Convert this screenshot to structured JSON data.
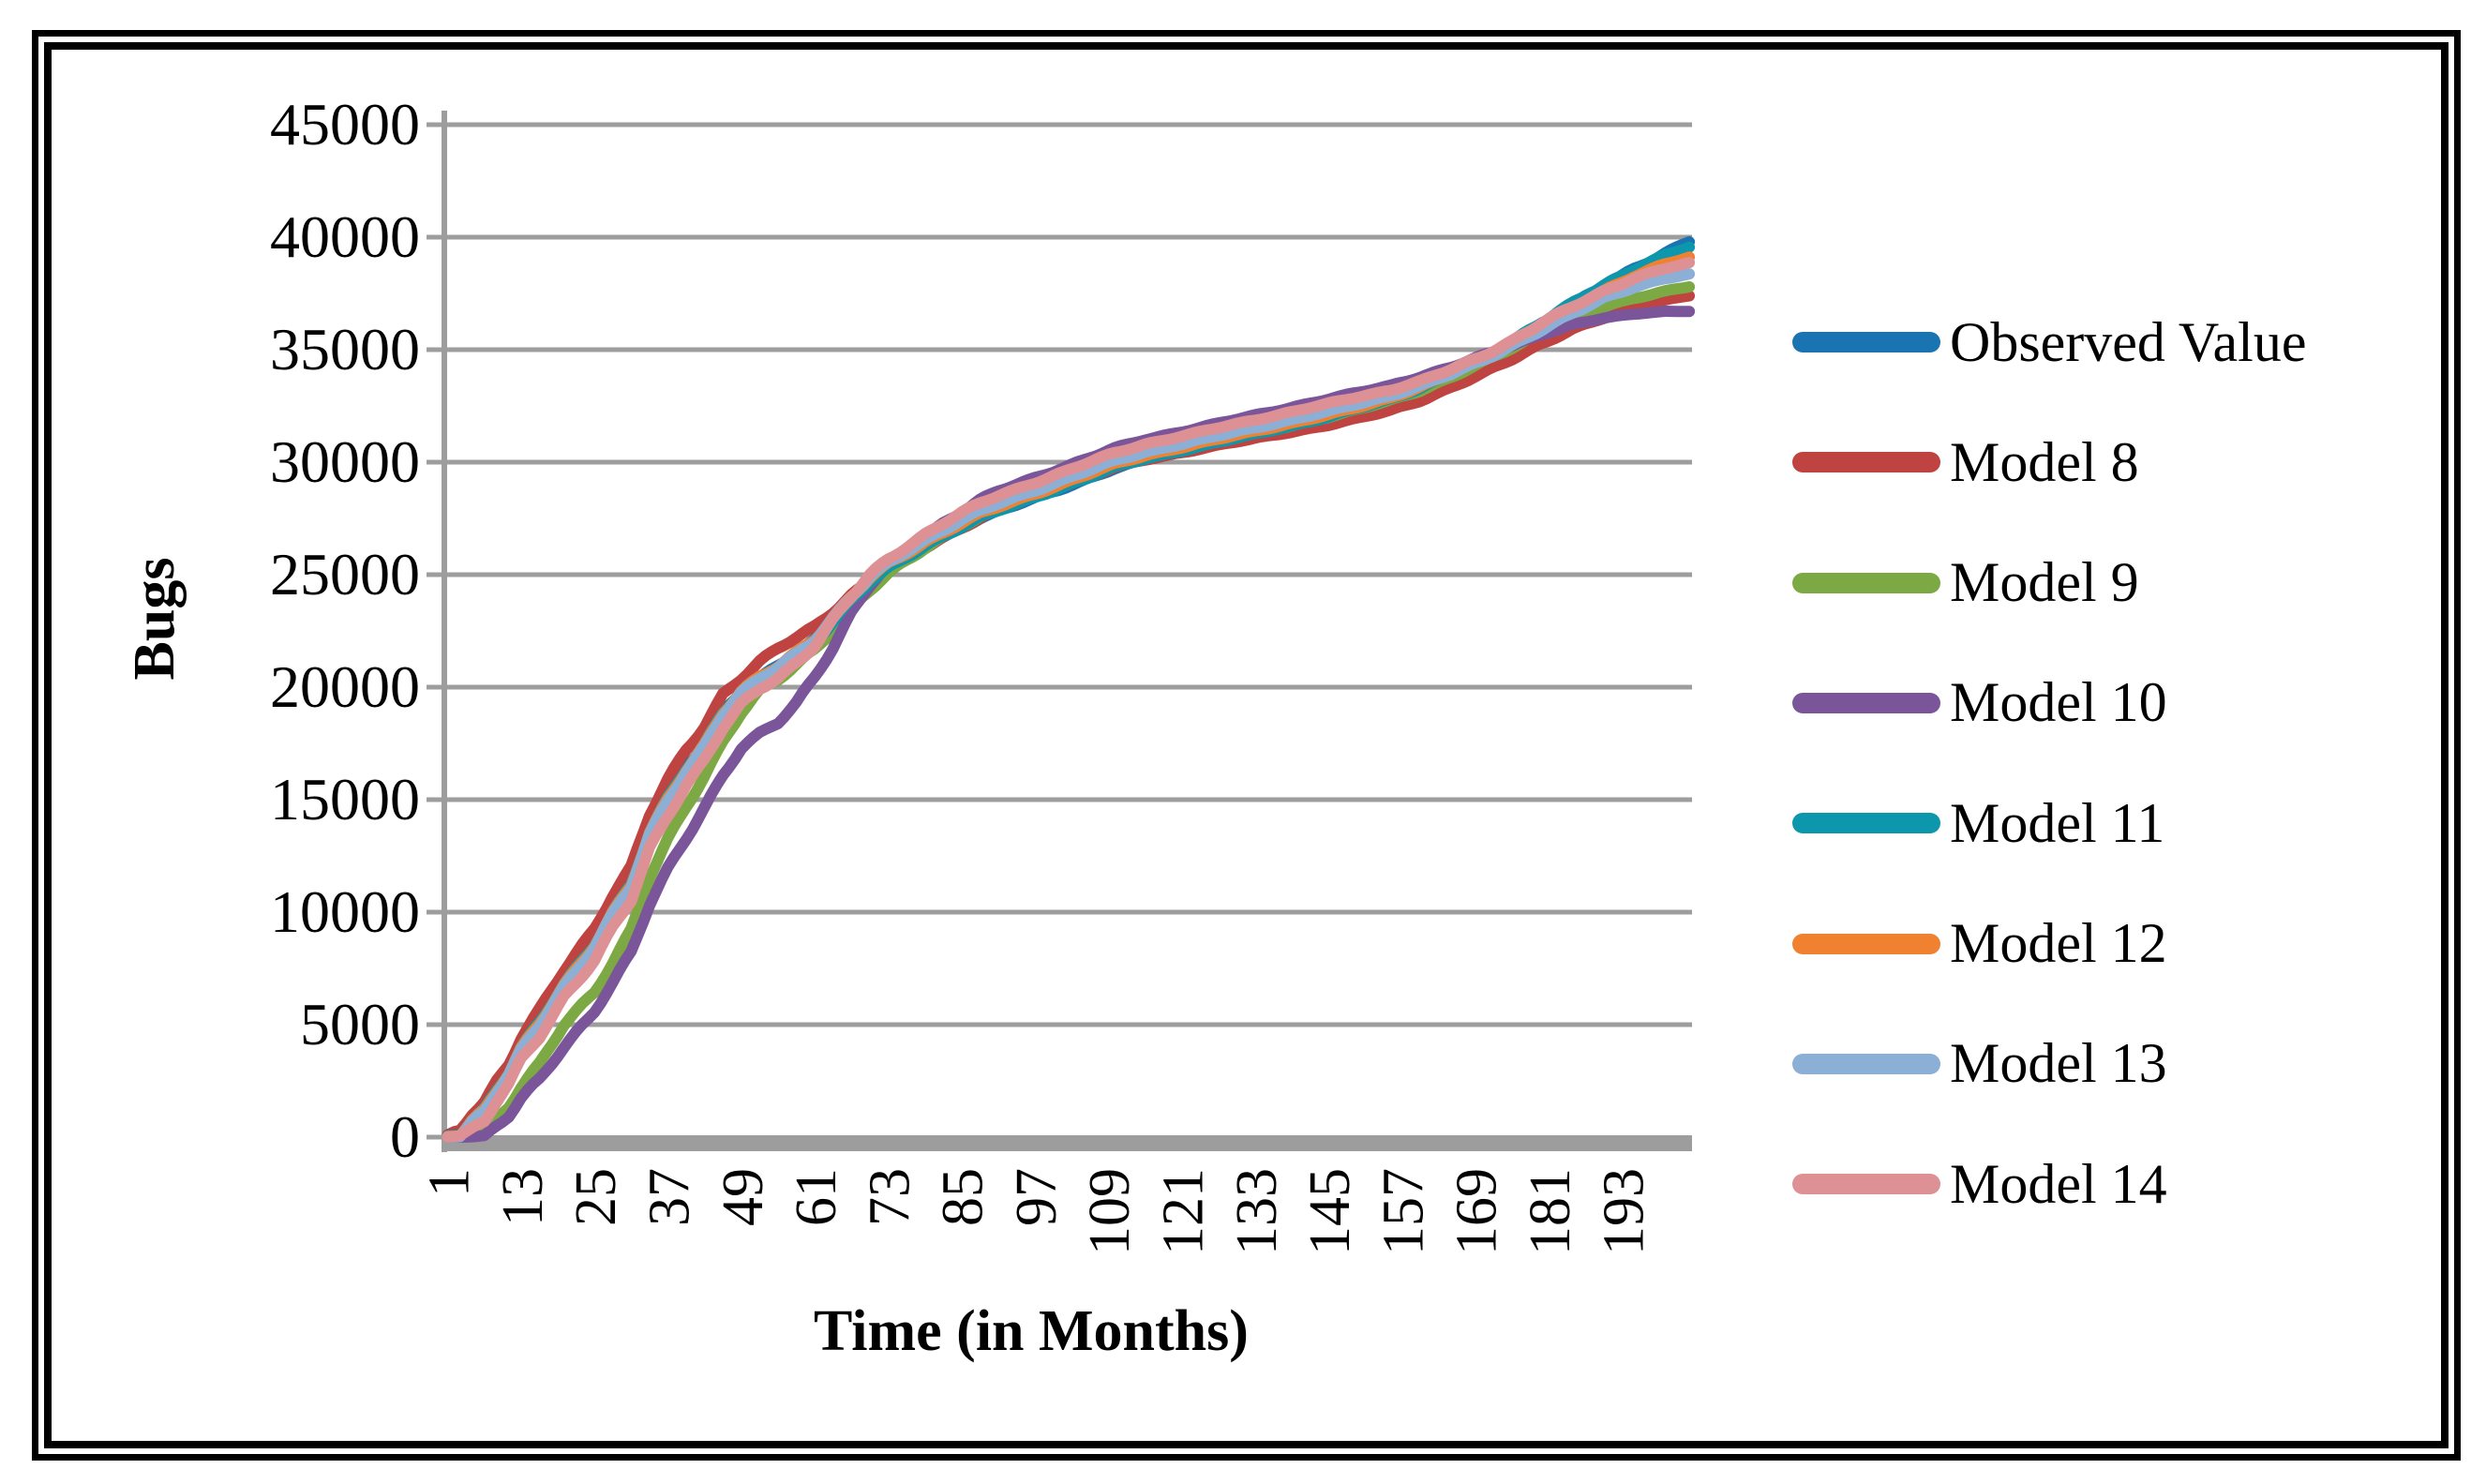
{
  "chart_data": {
    "type": "line",
    "title": "",
    "xlabel": "Time (in Months)",
    "ylabel": "Bugs",
    "x_tick_values": [
      1,
      13,
      25,
      37,
      49,
      61,
      73,
      85,
      97,
      109,
      121,
      133,
      145,
      157,
      169,
      181,
      193
    ],
    "y_tick_values": [
      0,
      5000,
      10000,
      15000,
      20000,
      25000,
      30000,
      35000,
      40000,
      45000
    ],
    "xlim": [
      1,
      204
    ],
    "ylim": [
      0,
      45000
    ],
    "grid": true,
    "legend_position": "right",
    "gridline_color": "#9D9D9D",
    "axis_color": "#9D9D9D",
    "anchor_months": [
      1,
      3,
      5,
      7,
      9,
      11,
      13,
      16,
      20,
      25,
      28,
      31,
      34,
      37,
      40,
      43,
      46,
      49,
      52,
      55,
      58,
      61,
      64,
      67,
      70,
      73,
      76,
      79,
      82,
      85,
      88,
      91,
      94,
      97,
      100,
      105,
      110,
      115,
      120,
      125,
      130,
      135,
      140,
      145,
      150,
      155,
      160,
      165,
      170,
      175,
      180,
      185,
      190,
      195,
      200,
      204
    ],
    "series": [
      {
        "name": "Observed Value",
        "color": "#1B74B2",
        "values": [
          50,
          150,
          800,
          1250,
          2100,
          2840,
          3900,
          5050,
          6800,
          8600,
          10000,
          11200,
          13500,
          15050,
          16400,
          17500,
          18900,
          19800,
          20400,
          20900,
          21500,
          22100,
          23000,
          23900,
          24700,
          25300,
          25800,
          26300,
          26700,
          27100,
          27500,
          27800,
          28100,
          28400,
          28700,
          29200,
          29700,
          30100,
          30400,
          30700,
          31000,
          31300,
          31600,
          31900,
          32300,
          32700,
          33200,
          33800,
          34500,
          35300,
          36200,
          37000,
          37800,
          38600,
          39300,
          39800
        ]
      },
      {
        "name": "Model 8",
        "color": "#BF4341",
        "values": [
          80,
          300,
          1100,
          1600,
          2500,
          3250,
          4400,
          5600,
          7400,
          9300,
          10800,
          12000,
          14300,
          15850,
          17200,
          18300,
          19700,
          20400,
          21100,
          21700,
          22200,
          22700,
          23400,
          24100,
          24700,
          25200,
          25700,
          26200,
          26650,
          27100,
          27500,
          27850,
          28150,
          28500,
          28800,
          29250,
          29750,
          30100,
          30380,
          30650,
          30900,
          31150,
          31400,
          31650,
          31950,
          32300,
          32750,
          33300,
          33900,
          34600,
          35300,
          35900,
          36400,
          36900,
          37200,
          37400
        ]
      },
      {
        "name": "Model 9",
        "color": "#7CA943",
        "values": [
          0,
          30,
          100,
          200,
          800,
          1380,
          2200,
          3200,
          5000,
          6500,
          7800,
          9200,
          11500,
          13200,
          14700,
          16100,
          17600,
          18900,
          19800,
          20300,
          21000,
          21700,
          22600,
          23500,
          24300,
          25000,
          25600,
          26200,
          26700,
          27150,
          27550,
          27900,
          28200,
          28550,
          28850,
          29300,
          29800,
          30200,
          30500,
          30800,
          31100,
          31400,
          31700,
          32000,
          32350,
          32750,
          33200,
          33750,
          34400,
          35100,
          35800,
          36400,
          36900,
          37300,
          37600,
          37800
        ]
      },
      {
        "name": "Model 10",
        "color": "#7B559A",
        "values": [
          0,
          10,
          30,
          60,
          500,
          960,
          1700,
          2520,
          4000,
          5650,
          6900,
          8200,
          10300,
          11900,
          13300,
          14700,
          16100,
          17300,
          17900,
          18400,
          19300,
          20500,
          21800,
          23300,
          24500,
          25400,
          26100,
          26700,
          27300,
          27800,
          28300,
          28700,
          29000,
          29300,
          29600,
          30100,
          30600,
          31000,
          31300,
          31600,
          31900,
          32200,
          32500,
          32800,
          33100,
          33400,
          33800,
          34200,
          34700,
          35200,
          35700,
          36100,
          36400,
          36600,
          36700,
          36700
        ]
      },
      {
        "name": "Model 11",
        "color": "#0C97AC",
        "values": [
          60,
          160,
          820,
          1270,
          2120,
          2860,
          3920,
          5070,
          6820,
          8620,
          10020,
          11220,
          13520,
          15070,
          16420,
          17520,
          18920,
          19820,
          20380,
          20850,
          21450,
          22050,
          22950,
          23850,
          24650,
          25250,
          25780,
          26300,
          26720,
          27130,
          27530,
          27840,
          28140,
          28450,
          28750,
          29250,
          29760,
          30160,
          30460,
          30760,
          31070,
          31380,
          31690,
          32000,
          32400,
          32800,
          33300,
          33900,
          34600,
          35400,
          36250,
          37050,
          37850,
          38600,
          39200,
          39550
        ]
      },
      {
        "name": "Model 12",
        "color": "#F08130",
        "values": [
          40,
          130,
          780,
          1230,
          2080,
          2820,
          3880,
          5030,
          6780,
          8580,
          9980,
          11180,
          13480,
          15030,
          16380,
          17480,
          18880,
          19780,
          20420,
          20920,
          21550,
          22200,
          23100,
          24000,
          24820,
          25450,
          25950,
          26450,
          26880,
          27300,
          27700,
          28000,
          28300,
          28600,
          28900,
          29400,
          29900,
          30300,
          30600,
          30900,
          31200,
          31500,
          31800,
          32100,
          32450,
          32850,
          33350,
          33900,
          34550,
          35300,
          36100,
          36850,
          37600,
          38300,
          38800,
          39100
        ]
      },
      {
        "name": "Model 13",
        "color": "#8CAFD6",
        "values": [
          20,
          90,
          700,
          1150,
          2000,
          2750,
          3800,
          4960,
          6700,
          8500,
          9900,
          11100,
          13400,
          14960,
          16300,
          17400,
          18800,
          19700,
          20350,
          20880,
          21500,
          22150,
          23080,
          24000,
          24850,
          25500,
          26050,
          26550,
          27000,
          27420,
          27820,
          28150,
          28450,
          28750,
          29050,
          29550,
          30050,
          30450,
          30750,
          31050,
          31350,
          31650,
          31950,
          32250,
          32600,
          32950,
          33400,
          33900,
          34500,
          35200,
          35900,
          36600,
          37300,
          37800,
          38150,
          38350
        ]
      },
      {
        "name": "Model 14",
        "color": "#DD9194",
        "values": [
          30,
          100,
          400,
          700,
          1600,
          2340,
          3400,
          4450,
          6250,
          7900,
          9300,
          10500,
          12800,
          14300,
          15700,
          16800,
          18200,
          19200,
          19900,
          20400,
          21100,
          21900,
          23000,
          24000,
          24950,
          25650,
          26250,
          26800,
          27300,
          27750,
          28150,
          28500,
          28800,
          29100,
          29400,
          29900,
          30400,
          30800,
          31100,
          31400,
          31700,
          32000,
          32300,
          32600,
          32900,
          33200,
          33600,
          34100,
          34700,
          35400,
          36200,
          36900,
          37600,
          38200,
          38600,
          38850
        ]
      }
    ]
  }
}
